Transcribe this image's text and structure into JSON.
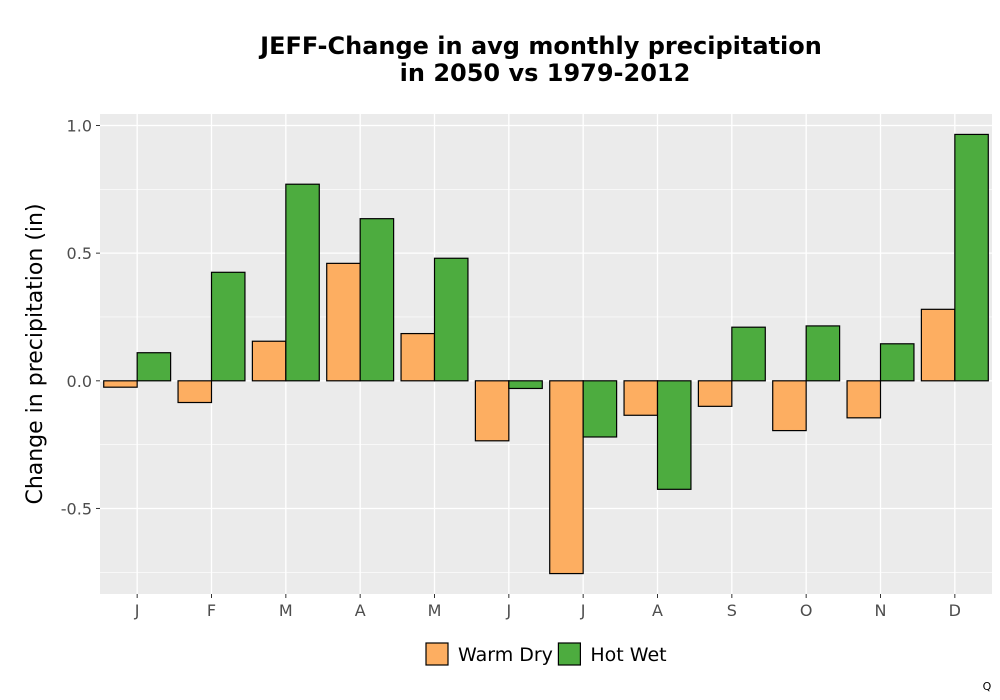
{
  "chart_data": {
    "type": "bar",
    "title_line1": "JEFF-Change in avg monthly precipitation",
    "title_line2": "in 2050 vs 1979-2012",
    "xlabel": "",
    "ylabel": "Change in precipitation (in)",
    "categories": [
      "J",
      "F",
      "M",
      "A",
      "M",
      "J",
      "J",
      "A",
      "S",
      "O",
      "N",
      "D"
    ],
    "series": [
      {
        "name": "Warm Dry",
        "color": "#FDAE61",
        "values": [
          -0.025,
          -0.085,
          0.155,
          0.46,
          0.185,
          -0.235,
          -0.755,
          -0.135,
          -0.1,
          -0.195,
          -0.145,
          0.28
        ]
      },
      {
        "name": "Hot Wet",
        "color": "#4DAC3F",
        "values": [
          0.11,
          0.425,
          0.77,
          0.635,
          0.48,
          -0.03,
          -0.22,
          -0.425,
          0.21,
          0.215,
          0.145,
          0.965
        ]
      }
    ],
    "ylim": [
      -0.835,
      1.045
    ],
    "yticks": [
      -0.5,
      0.0,
      0.5,
      1.0
    ],
    "ytick_labels": [
      "-0.5",
      "0.0",
      "0.5",
      "1.0"
    ],
    "grid": true,
    "legend_position": "bottom"
  },
  "corner_mark": "Q"
}
